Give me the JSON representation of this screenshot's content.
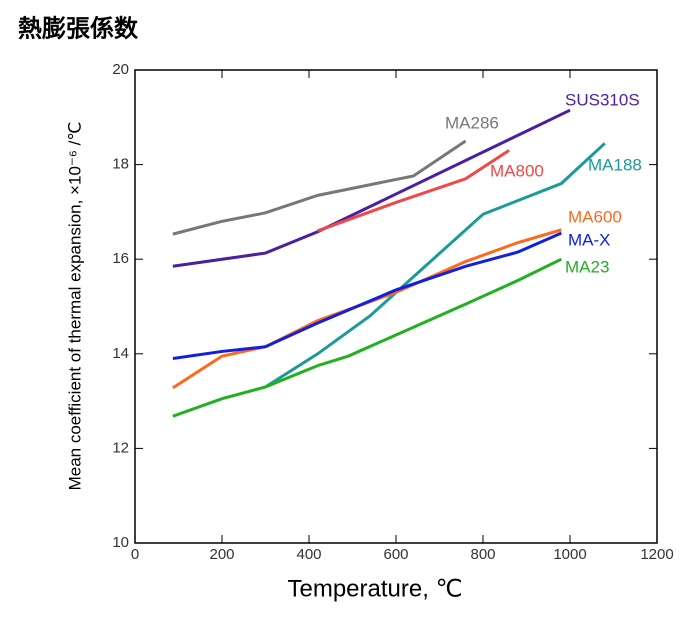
{
  "chart_data": {
    "type": "line",
    "title": "熱膨張係数",
    "xlabel": "Temperature, ℃",
    "ylabel": "Mean coefficient of thermal expansion, ×10⁻⁶ /℃",
    "xlim": [
      0,
      1200
    ],
    "xticks": [
      0,
      200,
      400,
      600,
      800,
      1000,
      1200
    ],
    "ylim": [
      10,
      20
    ],
    "yticks": [
      10,
      12,
      14,
      16,
      18,
      20
    ],
    "series": [
      {
        "name": "MA286",
        "color": "#777777",
        "x": [
          87,
          200,
          300,
          420,
          640,
          760
        ],
        "values": [
          16.53,
          16.8,
          16.98,
          17.35,
          17.76,
          18.5
        ]
      },
      {
        "name": "SUS310S",
        "color": "#4b1fa0",
        "x": [
          87,
          300,
          420,
          1000
        ],
        "values": [
          15.85,
          16.13,
          16.58,
          19.15
        ]
      },
      {
        "name": "MA800",
        "color": "#f04848",
        "x": [
          420,
          600,
          760,
          860
        ],
        "values": [
          16.6,
          17.2,
          17.7,
          18.3
        ]
      },
      {
        "name": "MA188",
        "color": "#1a9a9a",
        "x": [
          300,
          420,
          540,
          800,
          980,
          1080
        ],
        "values": [
          13.3,
          14.0,
          14.8,
          16.95,
          17.6,
          18.45
        ]
      },
      {
        "name": "MA600",
        "color": "#ff6a1a",
        "x": [
          87,
          200,
          300,
          420,
          600,
          760,
          880,
          980
        ],
        "values": [
          13.28,
          13.95,
          14.15,
          14.7,
          15.3,
          15.95,
          16.35,
          16.62
        ]
      },
      {
        "name": "MA-X",
        "color": "#1020e0",
        "x": [
          87,
          200,
          300,
          420,
          600,
          760,
          880,
          980
        ],
        "values": [
          13.9,
          14.05,
          14.15,
          14.65,
          15.35,
          15.85,
          16.15,
          16.55
        ]
      },
      {
        "name": "MA23",
        "color": "#20b020",
        "x": [
          87,
          200,
          300,
          420,
          490,
          760,
          880,
          980
        ],
        "values": [
          12.68,
          13.05,
          13.3,
          13.75,
          13.95,
          15.05,
          15.55,
          16.0
        ]
      }
    ]
  }
}
